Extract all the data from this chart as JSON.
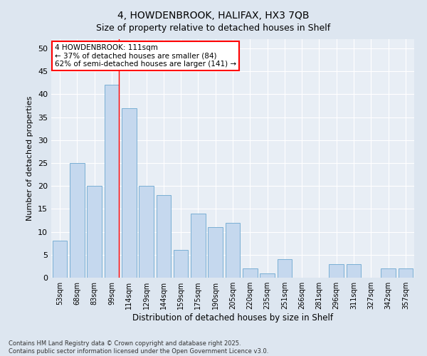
{
  "title1": "4, HOWDENBROOK, HALIFAX, HX3 7QB",
  "title2": "Size of property relative to detached houses in Shelf",
  "xlabel": "Distribution of detached houses by size in Shelf",
  "ylabel": "Number of detached properties",
  "categories": [
    "53sqm",
    "68sqm",
    "83sqm",
    "99sqm",
    "114sqm",
    "129sqm",
    "144sqm",
    "159sqm",
    "175sqm",
    "190sqm",
    "205sqm",
    "220sqm",
    "235sqm",
    "251sqm",
    "266sqm",
    "281sqm",
    "296sqm",
    "311sqm",
    "327sqm",
    "342sqm",
    "357sqm"
  ],
  "values": [
    8,
    25,
    20,
    42,
    37,
    20,
    18,
    6,
    14,
    11,
    12,
    2,
    1,
    4,
    0,
    0,
    3,
    3,
    0,
    2,
    2
  ],
  "bar_color": "#c5d8ee",
  "bar_edge_color": "#7aafd4",
  "ylim": [
    0,
    52
  ],
  "yticks": [
    0,
    5,
    10,
    15,
    20,
    25,
    30,
    35,
    40,
    45,
    50
  ],
  "red_line_x": 3.425,
  "annotation_line1": "4 HOWDENBROOK: 111sqm",
  "annotation_line2": "← 37% of detached houses are smaller (84)",
  "annotation_line3": "62% of semi-detached houses are larger (141) →",
  "footer1": "Contains HM Land Registry data © Crown copyright and database right 2025.",
  "footer2": "Contains public sector information licensed under the Open Government Licence v3.0.",
  "bg_color": "#dde6f0",
  "plot_bg_color": "#e8eef5"
}
